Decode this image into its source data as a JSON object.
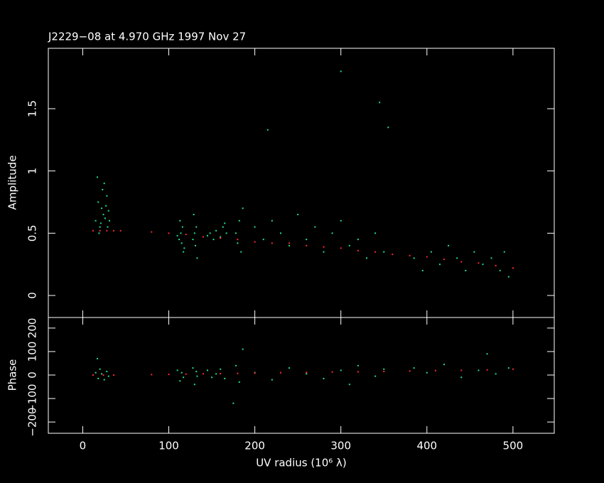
{
  "chart_data": [
    {
      "type": "scatter",
      "title": "J2229−08 at 4.970 GHz 1997 Nov 27",
      "ylabel": "Amplitude",
      "xlim": [
        -40,
        548
      ],
      "ylim": [
        -0.177,
        1.985
      ],
      "xticks": [
        0,
        100,
        200,
        300,
        400,
        500
      ],
      "xticklabels": false,
      "yticks": [
        0,
        0.5,
        1,
        1.5
      ],
      "series": [
        {
          "color": "#22dd88",
          "x": [
            15,
            18,
            20,
            21,
            22,
            23,
            24,
            25,
            26,
            27,
            28,
            29,
            30,
            17,
            19,
            31,
            110,
            112,
            114,
            115,
            116,
            118,
            113,
            117,
            128,
            130,
            131,
            132,
            133,
            129,
            145,
            148,
            152,
            155,
            160,
            163,
            165,
            167,
            178,
            180,
            182,
            184,
            186,
            200,
            210,
            220,
            230,
            240,
            250,
            260,
            270,
            280,
            290,
            300,
            310,
            320,
            330,
            340,
            350,
            355,
            215,
            300,
            345,
            385,
            395,
            405,
            415,
            425,
            435,
            445,
            455,
            465,
            475,
            485,
            495,
            490
          ],
          "values": [
            0.6,
            0.75,
            0.55,
            0.58,
            0.7,
            0.85,
            0.65,
            0.9,
            0.62,
            0.72,
            0.8,
            0.55,
            0.68,
            0.95,
            0.5,
            0.6,
            0.48,
            0.45,
            0.5,
            0.42,
            0.55,
            0.38,
            0.6,
            0.35,
            0.45,
            0.5,
            0.4,
            0.55,
            0.3,
            0.65,
            0.48,
            0.5,
            0.45,
            0.52,
            0.47,
            0.55,
            0.58,
            0.5,
            0.5,
            0.42,
            0.6,
            0.35,
            0.7,
            0.55,
            0.45,
            0.6,
            0.5,
            0.4,
            0.65,
            0.45,
            0.55,
            0.35,
            0.5,
            0.6,
            0.4,
            0.45,
            0.3,
            0.5,
            0.35,
            1.35,
            1.33,
            1.8,
            1.55,
            0.3,
            0.2,
            0.35,
            0.25,
            0.4,
            0.3,
            0.2,
            0.35,
            0.25,
            0.3,
            0.2,
            0.15,
            0.35
          ]
        },
        {
          "color": "#ff2a2a",
          "x": [
            12,
            20,
            28,
            36,
            44,
            80,
            100,
            120,
            140,
            160,
            180,
            200,
            220,
            240,
            260,
            280,
            300,
            320,
            340,
            360,
            380,
            400,
            420,
            440,
            460,
            480,
            500
          ],
          "values": [
            0.52,
            0.52,
            0.52,
            0.52,
            0.52,
            0.51,
            0.5,
            0.49,
            0.47,
            0.46,
            0.45,
            0.43,
            0.42,
            0.42,
            0.4,
            0.39,
            0.38,
            0.36,
            0.35,
            0.33,
            0.32,
            0.31,
            0.29,
            0.27,
            0.26,
            0.24,
            0.22
          ]
        }
      ]
    },
    {
      "type": "scatter",
      "ylabel": "Phase",
      "xlabel": "UV radius  (10⁶ λ)",
      "xlim": [
        -40,
        548
      ],
      "ylim": [
        -248,
        245
      ],
      "xticks": [
        0,
        100,
        200,
        300,
        400,
        500
      ],
      "xticklabels": true,
      "yticks": [
        {
          "value": -200,
          "label": "−200"
        },
        {
          "value": -100,
          "label": "−100"
        },
        0,
        100,
        200
      ],
      "series": [
        {
          "color": "#22dd88",
          "x": [
            15,
            18,
            20,
            22,
            25,
            28,
            30,
            17,
            110,
            113,
            115,
            117,
            128,
            130,
            132,
            133,
            145,
            150,
            155,
            160,
            165,
            178,
            182,
            186,
            200,
            220,
            240,
            260,
            280,
            300,
            320,
            340,
            350,
            175,
            385,
            400,
            420,
            440,
            460,
            470,
            480,
            495,
            310
          ],
          "values": [
            10,
            -15,
            25,
            5,
            -20,
            15,
            -5,
            70,
            20,
            -25,
            10,
            -10,
            30,
            -40,
            15,
            -5,
            20,
            -10,
            5,
            25,
            -15,
            40,
            -30,
            110,
            10,
            -20,
            30,
            5,
            -15,
            20,
            40,
            -5,
            25,
            -120,
            30,
            10,
            45,
            -10,
            20,
            90,
            5,
            30,
            -40
          ]
        },
        {
          "color": "#ff2a2a",
          "x": [
            12,
            24,
            36,
            80,
            100,
            120,
            140,
            160,
            180,
            200,
            230,
            260,
            290,
            320,
            350,
            380,
            410,
            440,
            470,
            500
          ],
          "values": [
            0,
            0,
            0,
            2,
            3,
            4,
            5,
            6,
            7,
            8,
            10,
            11,
            13,
            14,
            15,
            17,
            19,
            20,
            22,
            25
          ]
        }
      ]
    }
  ]
}
